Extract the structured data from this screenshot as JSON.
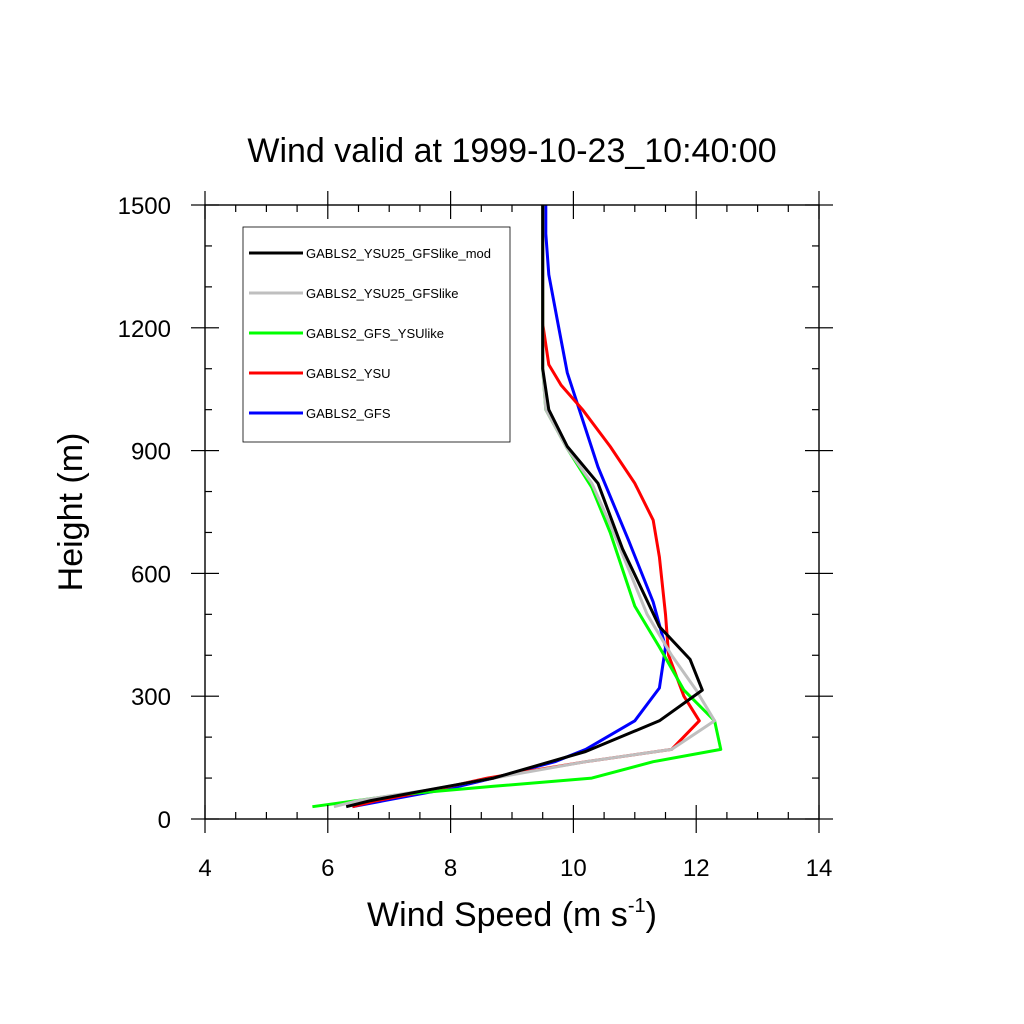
{
  "chart_data": {
    "type": "line",
    "title": "Wind valid at 1999-10-23_10:40:00",
    "xlabel": "Wind Speed (m s",
    "xlabel_sup": "-1",
    "xlabel_end": ")",
    "ylabel": "Height (m)",
    "xlim": [
      4,
      14
    ],
    "ylim": [
      0,
      1500
    ],
    "xticks": [
      "4",
      "6",
      "8",
      "10",
      "12",
      "14"
    ],
    "yticks": [
      "0",
      "300",
      "600",
      "900",
      "1200",
      "1500"
    ],
    "legend_position": "top-left",
    "series": [
      {
        "name": "GABLS2_YSU25_GFSlike_mod",
        "color": "#000000",
        "points": [
          [
            6.3,
            30
          ],
          [
            6.7,
            45
          ],
          [
            7.6,
            70
          ],
          [
            8.7,
            100
          ],
          [
            10.2,
            165
          ],
          [
            11.4,
            240
          ],
          [
            12.1,
            315
          ],
          [
            11.9,
            390
          ],
          [
            11.4,
            470
          ],
          [
            10.8,
            660
          ],
          [
            10.4,
            820
          ],
          [
            9.9,
            910
          ],
          [
            9.6,
            1000
          ],
          [
            9.5,
            1100
          ],
          [
            9.5,
            1200
          ],
          [
            9.5,
            1300
          ],
          [
            9.5,
            1400
          ],
          [
            9.5,
            1500
          ]
        ]
      },
      {
        "name": "GABLS2_YSU25_GFSlike",
        "color": "#bfbfbf",
        "points": [
          [
            6.1,
            30
          ],
          [
            6.5,
            45
          ],
          [
            7.6,
            70
          ],
          [
            8.7,
            100
          ],
          [
            10.2,
            140
          ],
          [
            11.6,
            170
          ],
          [
            12.3,
            240
          ],
          [
            12.0,
            315
          ],
          [
            11.6,
            400
          ],
          [
            11.2,
            500
          ],
          [
            10.6,
            720
          ],
          [
            10.3,
            820
          ],
          [
            9.9,
            905
          ],
          [
            9.55,
            1000
          ],
          [
            9.5,
            1100
          ],
          [
            9.5,
            1200
          ],
          [
            9.5,
            1300
          ],
          [
            9.5,
            1400
          ],
          [
            9.5,
            1500
          ]
        ]
      },
      {
        "name": "GABLS2_GFS_YSUlike",
        "color": "#00ff00",
        "points": [
          [
            5.75,
            30
          ],
          [
            7.2,
            60
          ],
          [
            8.7,
            80
          ],
          [
            10.3,
            100
          ],
          [
            11.3,
            140
          ],
          [
            12.4,
            170
          ],
          [
            12.3,
            240
          ],
          [
            11.8,
            315
          ],
          [
            11.4,
            420
          ],
          [
            11.0,
            520
          ],
          [
            10.6,
            700
          ],
          [
            10.3,
            810
          ],
          [
            9.9,
            905
          ],
          [
            9.55,
            1000
          ],
          [
            9.5,
            1100
          ],
          [
            9.5,
            1200
          ],
          [
            9.5,
            1300
          ],
          [
            9.5,
            1400
          ],
          [
            9.5,
            1500
          ]
        ]
      },
      {
        "name": "GABLS2_YSU",
        "color": "#ff0000",
        "points": [
          [
            6.4,
            30
          ],
          [
            6.8,
            45
          ],
          [
            7.7,
            70
          ],
          [
            8.6,
            100
          ],
          [
            10.2,
            140
          ],
          [
            11.6,
            170
          ],
          [
            12.05,
            240
          ],
          [
            11.8,
            300
          ],
          [
            11.55,
            400
          ],
          [
            11.5,
            500
          ],
          [
            11.4,
            640
          ],
          [
            11.3,
            730
          ],
          [
            11.0,
            820
          ],
          [
            10.6,
            910
          ],
          [
            10.15,
            1000
          ],
          [
            9.8,
            1060
          ],
          [
            9.6,
            1110
          ],
          [
            9.5,
            1210
          ],
          [
            9.5,
            1300
          ],
          [
            9.5,
            1400
          ],
          [
            9.5,
            1500
          ]
        ]
      },
      {
        "name": "GABLS2_GFS",
        "color": "#0000ff",
        "points": [
          [
            6.4,
            30
          ],
          [
            7.1,
            50
          ],
          [
            8.0,
            75
          ],
          [
            8.7,
            100
          ],
          [
            9.7,
            140
          ],
          [
            10.2,
            170
          ],
          [
            11.0,
            240
          ],
          [
            11.4,
            320
          ],
          [
            11.5,
            420
          ],
          [
            11.3,
            530
          ],
          [
            10.9,
            680
          ],
          [
            10.4,
            860
          ],
          [
            9.9,
            1090
          ],
          [
            9.75,
            1210
          ],
          [
            9.6,
            1330
          ],
          [
            9.55,
            1430
          ],
          [
            9.55,
            1500
          ]
        ]
      }
    ]
  }
}
